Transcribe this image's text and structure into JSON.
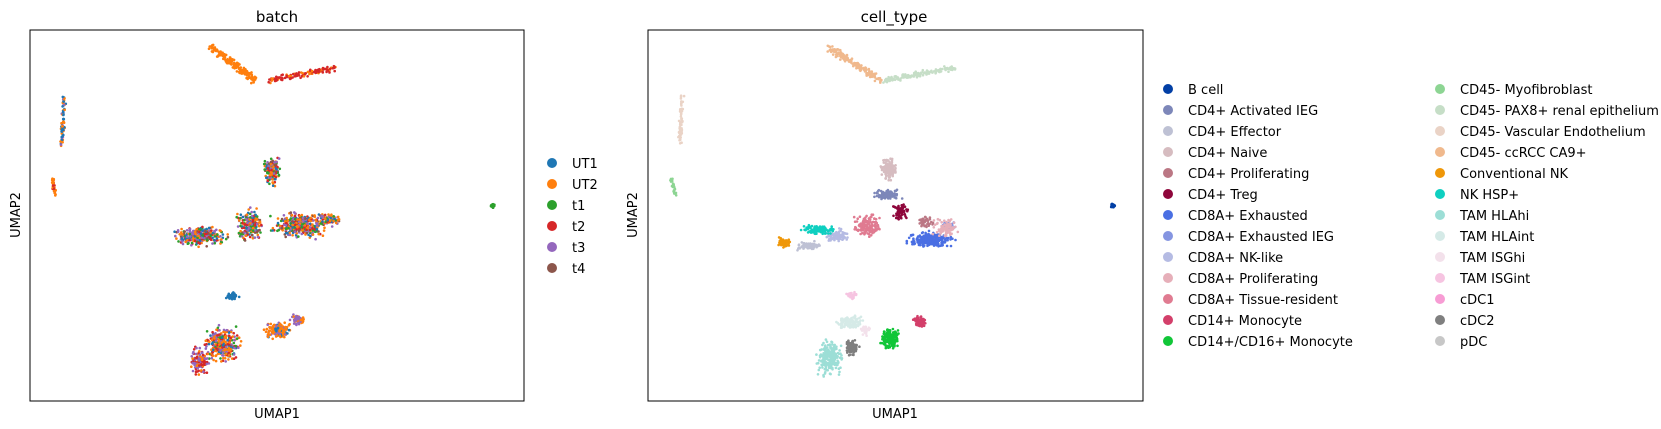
{
  "chart_data": [
    {
      "type": "scatter",
      "title": "batch",
      "xlabel": "UMAP1",
      "ylabel": "UMAP2",
      "grid": false,
      "ticks": false,
      "legend_position": "right",
      "legend_columns": 1,
      "legend": [
        {
          "name": "UT1",
          "color": "#1f77b4"
        },
        {
          "name": "UT2",
          "color": "#ff7f0e"
        },
        {
          "name": "t1",
          "color": "#2ca02c"
        },
        {
          "name": "t2",
          "color": "#d62728"
        },
        {
          "name": "t3",
          "color": "#9467bd"
        },
        {
          "name": "t4",
          "color": "#8c564b"
        }
      ]
    },
    {
      "type": "scatter",
      "title": "cell_type",
      "xlabel": "UMAP1",
      "ylabel": "UMAP2",
      "grid": false,
      "ticks": false,
      "legend_position": "right",
      "legend_columns": 2,
      "legend": [
        {
          "name": "B cell",
          "color": "#023fa5"
        },
        {
          "name": "CD4+ Activated IEG",
          "color": "#7d87b9"
        },
        {
          "name": "CD4+ Effector",
          "color": "#bec1d4"
        },
        {
          "name": "CD4+ Naive",
          "color": "#d6bcc0"
        },
        {
          "name": "CD4+ Proliferating",
          "color": "#bb7784"
        },
        {
          "name": "CD4+ Treg",
          "color": "#8e063b"
        },
        {
          "name": "CD8A+ Exhausted",
          "color": "#4a6fe3"
        },
        {
          "name": "CD8A+ Exhausted IEG",
          "color": "#8595e1"
        },
        {
          "name": "CD8A+ NK-like",
          "color": "#b5bbe3"
        },
        {
          "name": "CD8A+ Proliferating",
          "color": "#e6afb9"
        },
        {
          "name": "CD8A+ Tissue-resident",
          "color": "#e07b91"
        },
        {
          "name": "CD14+ Monocyte",
          "color": "#d33f6a"
        },
        {
          "name": "CD14+/CD16+ Monocyte",
          "color": "#11c638"
        },
        {
          "name": "CD45- Myofibroblast",
          "color": "#8dd593"
        },
        {
          "name": "CD45- PAX8+ renal epithelium",
          "color": "#c6dec7"
        },
        {
          "name": "CD45- Vascular Endothelium",
          "color": "#ead3c6"
        },
        {
          "name": "CD45- ccRCC CA9+",
          "color": "#f0b98d"
        },
        {
          "name": "Conventional NK",
          "color": "#ef9708"
        },
        {
          "name": "NK HSP+",
          "color": "#0fcfc0"
        },
        {
          "name": "TAM HLAhi",
          "color": "#9cded6"
        },
        {
          "name": "TAM HLAint",
          "color": "#d5eae7"
        },
        {
          "name": "TAM ISGhi",
          "color": "#f3e1eb"
        },
        {
          "name": "TAM ISGint",
          "color": "#f6c4e1"
        },
        {
          "name": "cDC1",
          "color": "#f79cd4"
        },
        {
          "name": "cDC2",
          "color": "#7f7f7f"
        },
        {
          "name": "pDC",
          "color": "#c7c7c7"
        }
      ]
    }
  ]
}
